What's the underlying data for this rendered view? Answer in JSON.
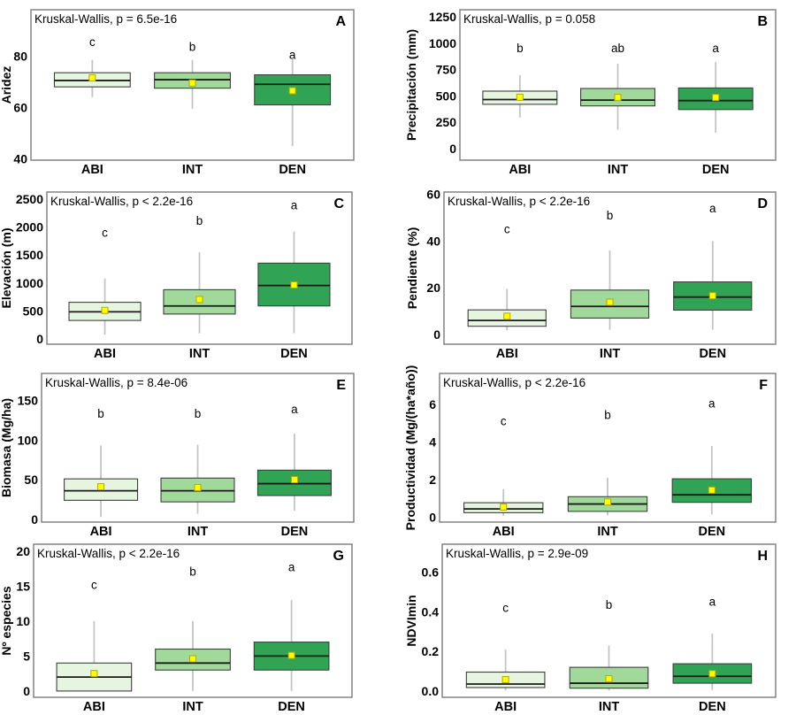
{
  "figure": {
    "groups": [
      "ABI",
      "INT",
      "DEN"
    ],
    "colors": {
      "group_fills": [
        "#e5f5e0",
        "#a1d99b",
        "#31a354"
      ],
      "box_stroke": "#3f3f3f",
      "median_line": "#1a1a1a",
      "whisker": "#c4c4c4",
      "mean_fill": "#ffff00",
      "mean_stroke": "#b5a800",
      "panel_border": "#7a7a7a",
      "background": "#ffffff",
      "text": "#000000"
    }
  },
  "chart_data": [
    {
      "id": "A",
      "type": "bar",
      "subtype": "boxplot",
      "title": "Kruskal-Wallis, p = 6.5e-16",
      "ylabel": "Aridez",
      "ylim": [
        39.5,
        98
      ],
      "yticks": [
        40,
        60,
        80
      ],
      "ytick_labels": [
        "40",
        "60",
        "80"
      ],
      "categories": [
        "ABI",
        "INT",
        "DEN"
      ],
      "letters": [
        "c",
        "b",
        "a"
      ],
      "letter_y": [
        85.5,
        83.5,
        80.5
      ],
      "boxes": [
        {
          "whisker_low": 64,
          "q1": 68,
          "median": 70.5,
          "q3": 73.5,
          "whisker_high": 78.5,
          "mean": 71.5
        },
        {
          "whisker_low": 59.5,
          "q1": 67.5,
          "median": 70.8,
          "q3": 73.5,
          "whisker_high": 78.5,
          "mean": 69.5
        },
        {
          "whisker_low": 45,
          "q1": 61,
          "median": 69,
          "q3": 72.7,
          "whisker_high": 79,
          "mean": 66.5
        }
      ],
      "layout": {
        "cell": [
          0,
          0
        ],
        "plot": [
          35,
          11,
          400,
          181
        ],
        "ylabel_x": 7
      }
    },
    {
      "id": "B",
      "type": "bar",
      "subtype": "boxplot",
      "title": "Kruskal-Wallis, p = 0.058",
      "ylabel": "Precipitación (mm)",
      "ylim": [
        -110,
        1317
      ],
      "yticks": [
        0,
        250,
        500,
        750,
        1000,
        1250
      ],
      "ytick_labels": [
        "0",
        "250",
        "500",
        "750",
        "1000",
        "1250"
      ],
      "categories": [
        "ABI",
        "INT",
        "DEN"
      ],
      "letters": [
        "b",
        "ab",
        "a"
      ],
      "letter_y": [
        950,
        950,
        950
      ],
      "boxes": [
        {
          "whisker_low": 295,
          "q1": 420,
          "median": 465,
          "q3": 545,
          "whisker_high": 696,
          "mean": 487
        },
        {
          "whisker_low": 180,
          "q1": 405,
          "median": 460,
          "q3": 570,
          "whisker_high": 805,
          "mean": 485
        },
        {
          "whisker_low": 150,
          "q1": 370,
          "median": 455,
          "q3": 575,
          "whisker_high": 820,
          "mean": 485
        }
      ],
      "layout": {
        "cell": [
          450,
          0
        ],
        "plot": [
          70,
          11,
          427,
          181
        ],
        "ylabel_x": 15
      }
    },
    {
      "id": "C",
      "type": "bar",
      "subtype": "boxplot",
      "title": "Kruskal-Wallis, p < 2.2e-16",
      "ylabel": "Elevación (m)",
      "ylim": [
        -95,
        2627
      ],
      "yticks": [
        0,
        500,
        1000,
        1500,
        2000,
        2500
      ],
      "ytick_labels": [
        "0",
        "500",
        "1000",
        "1500",
        "2000",
        "2500"
      ],
      "categories": [
        "ABI",
        "INT",
        "DEN"
      ],
      "letters": [
        "c",
        "b",
        "a"
      ],
      "letter_y": [
        1900,
        2110,
        2390
      ],
      "boxes": [
        {
          "whisker_low": 75,
          "q1": 330,
          "median": 485,
          "q3": 655,
          "whisker_high": 1080,
          "mean": 510
        },
        {
          "whisker_low": 100,
          "q1": 445,
          "median": 590,
          "q3": 880,
          "whisker_high": 1550,
          "mean": 705
        },
        {
          "whisker_low": 100,
          "q1": 590,
          "median": 955,
          "q3": 1355,
          "whisker_high": 1920,
          "mean": 965
        }
      ],
      "layout": {
        "cell": [
          0,
          202
        ],
        "plot": [
          53,
          15,
          398,
          187
        ],
        "ylabel_x": 7
      }
    },
    {
      "id": "D",
      "type": "bar",
      "subtype": "boxplot",
      "title": "Kruskal-Wallis, p < 2.2e-16",
      "ylabel": "Pendiente (%)",
      "ylim": [
        -4.2,
        61
      ],
      "yticks": [
        0,
        20,
        40,
        60
      ],
      "ytick_labels": [
        "0",
        "20",
        "40",
        "60"
      ],
      "categories": [
        "ABI",
        "INT",
        "DEN"
      ],
      "letters": [
        "c",
        "b",
        "a"
      ],
      "letter_y": [
        45,
        51,
        54
      ],
      "boxes": [
        {
          "whisker_low": 1.8,
          "q1": 3.5,
          "median": 6,
          "q3": 10.5,
          "whisker_high": 19.5,
          "mean": 7.8
        },
        {
          "whisker_low": 2,
          "q1": 7,
          "median": 12,
          "q3": 19,
          "whisker_high": 36,
          "mean": 13.8
        },
        {
          "whisker_low": 2,
          "q1": 10.4,
          "median": 16,
          "q3": 22.5,
          "whisker_high": 40,
          "mean": 16.6
        }
      ],
      "layout": {
        "cell": [
          450,
          202
        ],
        "plot": [
          52,
          15,
          427,
          187
        ],
        "ylabel_x": 16
      }
    },
    {
      "id": "E",
      "type": "bar",
      "subtype": "boxplot",
      "title": "Kruskal-Wallis, p = 8.4e-06",
      "ylabel": "Biomasa (Mg/ha)",
      "ylim": [
        -3.5,
        184
      ],
      "yticks": [
        0,
        50,
        100,
        150
      ],
      "ytick_labels": [
        "0",
        "50",
        "100",
        "150"
      ],
      "categories": [
        "ABI",
        "INT",
        "DEN"
      ],
      "letters": [
        "b",
        "b",
        "a"
      ],
      "letter_y": [
        133,
        133,
        139
      ],
      "boxes": [
        {
          "whisker_low": 3,
          "q1": 24,
          "median": 36,
          "q3": 51,
          "whisker_high": 93,
          "mean": 41
        },
        {
          "whisker_low": 7,
          "q1": 22,
          "median": 36,
          "q3": 52,
          "whisker_high": 94,
          "mean": 40
        },
        {
          "whisker_low": 11,
          "q1": 30,
          "median": 45,
          "q3": 62,
          "whisker_high": 108,
          "mean": 50
        }
      ],
      "layout": {
        "cell": [
          0,
          404
        ],
        "plot": [
          47,
          18,
          400,
          186
        ],
        "ylabel_x": 7
      }
    },
    {
      "id": "F",
      "type": "bar",
      "subtype": "boxplot",
      "title": "Kruskal-Wallis, p < 2.2e-16",
      "ylabel": "Productividad (Mg/(ha*año))",
      "ylim": [
        -0.25,
        7.65
      ],
      "yticks": [
        0,
        2,
        4,
        6
      ],
      "ytick_labels": [
        "0",
        "2",
        "4",
        "6"
      ],
      "categories": [
        "ABI",
        "INT",
        "DEN"
      ],
      "letters": [
        "c",
        "b",
        "a"
      ],
      "letter_y": [
        5.1,
        5.45,
        6.05
      ],
      "boxes": [
        {
          "whisker_low": 0.08,
          "q1": 0.25,
          "median": 0.45,
          "q3": 0.78,
          "whisker_high": 1.5,
          "mean": 0.55
        },
        {
          "whisker_low": 0.11,
          "q1": 0.32,
          "median": 0.71,
          "q3": 1.1,
          "whisker_high": 2.1,
          "mean": 0.82
        },
        {
          "whisker_low": 0.16,
          "q1": 0.8,
          "median": 1.2,
          "q3": 2.05,
          "whisker_high": 3.8,
          "mean": 1.45
        }
      ],
      "layout": {
        "cell": [
          450,
          404
        ],
        "plot": [
          47,
          18,
          427,
          186
        ],
        "ylabel_x": 14
      }
    },
    {
      "id": "G",
      "type": "bar",
      "subtype": "boxplot",
      "title": "Kruskal-Wallis, p < 2.2e-16",
      "ylabel": "Nº especies",
      "ylim": [
        -0.9,
        21
      ],
      "yticks": [
        0,
        5,
        10,
        15,
        20
      ],
      "ytick_labels": [
        "0",
        "5",
        "10",
        "15",
        "20"
      ],
      "categories": [
        "ABI",
        "INT",
        "DEN"
      ],
      "letters": [
        "c",
        "b",
        "a"
      ],
      "letter_y": [
        15.2,
        17.1,
        17.7
      ],
      "boxes": [
        {
          "whisker_low": 0,
          "q1": 0,
          "median": 2,
          "q3": 4,
          "whisker_high": 10,
          "mean": 2.5
        },
        {
          "whisker_low": 0,
          "q1": 3,
          "median": 4,
          "q3": 6,
          "whisker_high": 10,
          "mean": 4.6
        },
        {
          "whisker_low": 0,
          "q1": 3,
          "median": 5,
          "q3": 7,
          "whisker_high": 13,
          "mean": 5.1
        }
      ],
      "layout": {
        "cell": [
          0,
          606
        ],
        "plot": [
          38,
          9,
          398,
          182
        ],
        "ylabel_x": 7
      }
    },
    {
      "id": "H",
      "type": "bar",
      "subtype": "boxplot",
      "title": "Kruskal-Wallis, p = 2.9e-09",
      "ylabel": "NDVImin",
      "ylim": [
        -0.031,
        0.74
      ],
      "yticks": [
        0,
        0.2,
        0.4,
        0.6
      ],
      "ytick_labels": [
        "0.0",
        "0.2",
        "0.4",
        "0.6"
      ],
      "categories": [
        "ABI",
        "INT",
        "DEN"
      ],
      "letters": [
        "c",
        "b",
        "a"
      ],
      "letter_y": [
        0.42,
        0.435,
        0.45
      ],
      "boxes": [
        {
          "whisker_low": 0.003,
          "q1": 0.018,
          "median": 0.036,
          "q3": 0.096,
          "whisker_high": 0.21,
          "mean": 0.058
        },
        {
          "whisker_low": 0.003,
          "q1": 0.015,
          "median": 0.04,
          "q3": 0.12,
          "whisker_high": 0.23,
          "mean": 0.062
        },
        {
          "whisker_low": 0.006,
          "q1": 0.04,
          "median": 0.075,
          "q3": 0.138,
          "whisker_high": 0.29,
          "mean": 0.088
        }
      ],
      "layout": {
        "cell": [
          450,
          606
        ],
        "plot": [
          50,
          9,
          427,
          182
        ],
        "ylabel_x": 15
      }
    }
  ]
}
